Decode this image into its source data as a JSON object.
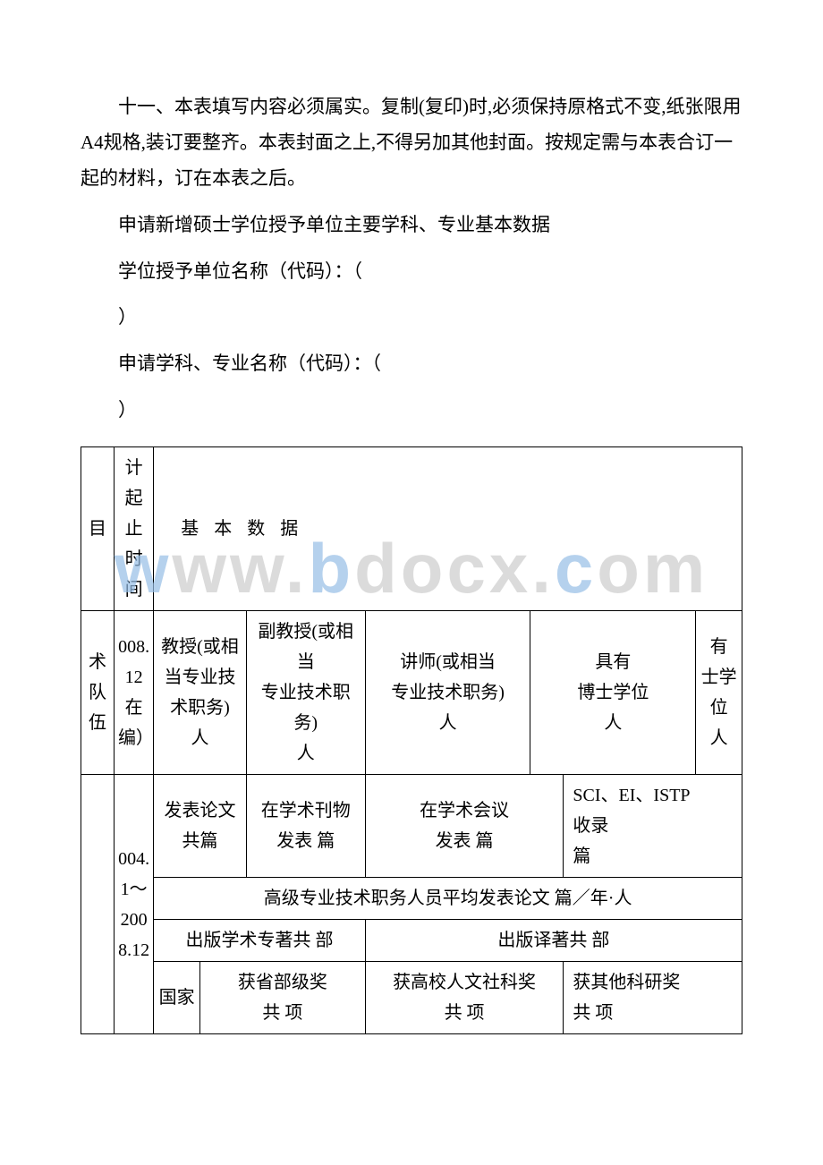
{
  "paragraphs": {
    "p1": "十一、本表填写内容必须属实。复制(复印)时,必须保持原格式不变,纸张限用 A4规格,装订要整齐。本表封面之上,不得另加其他封面。按规定需与本表合订一起的材料，订在本表之后。",
    "p2": "申请新增硕士学位授予单位主要学科、专业基本数据",
    "p3": "学位授予单位名称（代码）：（",
    "p4": "）",
    "p5": "申请学科、专业名称（代码）：（",
    "p6": "）"
  },
  "table": {
    "r1c1": "目",
    "r1c2": "计起止时间",
    "r1c3": "基 本 数 据",
    "r2c1": "术队伍",
    "r2c2": "008.12在编）",
    "r2c3": "教授(或相当专业技术职务)　人",
    "r2c4": "副教授(或相当\n专业技术职务)\n人",
    "r2c5": "讲师(或相当\n专业技术职务)\n人",
    "r2c6": "具有\n博士学位\n人",
    "r2c7": "有\n士学位\n人",
    "r3c2": "004.1～2008.12",
    "r3c3": "发表论文\n共篇",
    "r3c4": "在学术刊物\n发表 篇",
    "r3c5": "在学术会议\n发表 篇",
    "r3c6": "SCI、EI、ISTP\n收录\n篇",
    "r4": "高级专业技术职务人员平均发表论文 篇／年·人",
    "r5a": "出版学术专著共 部",
    "r5b": "出版译著共 部",
    "r6c1": "国家",
    "r6c2": "获省部级奖\n共 项",
    "r6c3": "获高校人文社科奖\n共 项",
    "r6c4": "获其他科研奖\n共 项"
  },
  "watermark": "www.bdocx.com"
}
